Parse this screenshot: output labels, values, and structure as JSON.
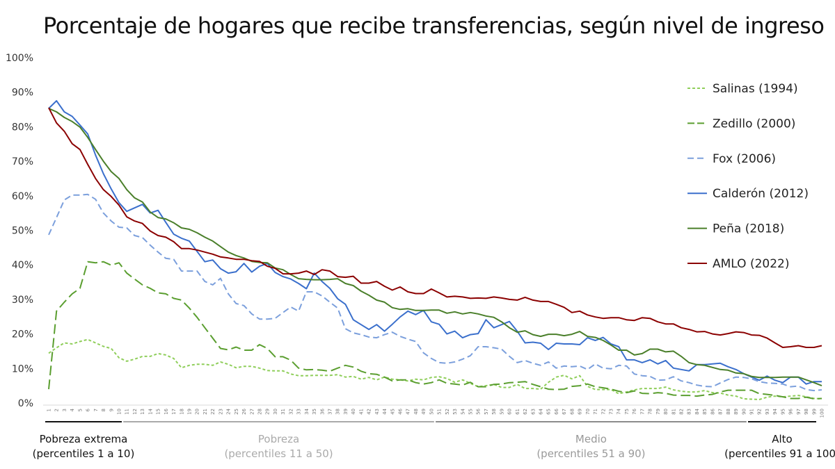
{
  "chart_data": {
    "type": "line",
    "title": "Porcentaje de hogares que recibe transferencias, según nivel de ingreso",
    "xlabel": "",
    "ylabel": "",
    "ylim": [
      0,
      100
    ],
    "yticks": [
      "0%",
      "10%",
      "20%",
      "30%",
      "40%",
      "50%",
      "60%",
      "70%",
      "80%",
      "90%",
      "100%"
    ],
    "x_start": 1,
    "x_end": 100,
    "grid": false,
    "legend_position": "right",
    "groups": [
      {
        "name": "Pobreza extrema",
        "range": "(percentiles 1 a 10)",
        "from": 1,
        "to": 10,
        "color": "#111111"
      },
      {
        "name": "Pobreza",
        "range": "(percentiles 11 a 50)",
        "from": 11,
        "to": 50,
        "color": "#aaaaaa"
      },
      {
        "name": "Medio",
        "range": "(percentiles 51 a 90)",
        "from": 51,
        "to": 90,
        "color": "#8c8c8c"
      },
      {
        "name": "Alto",
        "range": "(percentiles 91 a 100)",
        "from": 91,
        "to": 100,
        "color": "#111111"
      }
    ],
    "series": [
      {
        "name": "Salinas (1994)",
        "color": "#8fce5a",
        "dash": "short",
        "values": [
          14.4,
          16,
          17.4,
          17.1,
          17.8,
          18.4,
          17.4,
          16.4,
          15.8,
          13.1,
          12.1,
          12.7,
          13.5,
          13.5,
          14.3,
          13.9,
          12.9,
          10.2,
          10.9,
          11.2,
          11.2,
          10.9,
          11.9,
          11.2,
          10.2,
          10.6,
          10.6,
          10.1,
          9.4,
          9.3,
          9.3,
          8.4,
          7.9,
          7.9,
          8,
          8,
          8,
          8.2,
          7.5,
          7.7,
          6.9,
          7.4,
          6.7,
          7.5,
          6.9,
          6.7,
          6.4,
          6.9,
          6.7,
          7.4,
          7.6,
          7.1,
          6,
          6.7,
          5.7,
          4.7,
          5,
          5.4,
          4.5,
          4.5,
          5.4,
          4.2,
          4.2,
          4,
          6,
          7.5,
          8,
          7,
          7.9,
          4.8,
          3.9,
          3.9,
          3.9,
          2.7,
          3.2,
          3.8,
          4.2,
          4.2,
          4.2,
          4.6,
          3.8,
          3.4,
          3.2,
          3.2,
          3.6,
          3,
          2.9,
          2.3,
          2,
          1.2,
          1.1,
          1,
          1.7,
          2,
          1.8,
          2,
          2.2,
          1.8,
          1.3,
          1.2
        ]
      },
      {
        "name": "Zedillo (2000)",
        "color": "#5a9e2f",
        "dash": "long",
        "values": [
          4,
          26.6,
          29.2,
          31.6,
          33.2,
          40.9,
          40.6,
          40.9,
          39.9,
          40.6,
          37.6,
          35.9,
          34.2,
          33.2,
          31.9,
          31.6,
          30.3,
          29.8,
          27.5,
          24.8,
          21.8,
          18.8,
          15.8,
          15.4,
          16.2,
          15.3,
          15.3,
          16.9,
          15.8,
          13.4,
          13.4,
          12.4,
          10.1,
          9.6,
          9.7,
          9.5,
          9.2,
          10.1,
          10.9,
          10.4,
          9.2,
          8.5,
          8.3,
          7.5,
          6.4,
          6.7,
          6.7,
          5.9,
          5.5,
          5.9,
          6.7,
          5.7,
          5.5,
          5.2,
          6,
          4.7,
          4.7,
          5.4,
          5.5,
          5.9,
          6,
          6.2,
          5.4,
          4.7,
          4,
          3.9,
          4,
          4.8,
          5,
          5.5,
          4.7,
          4.4,
          4,
          3.4,
          3,
          3.5,
          2.8,
          2.7,
          3,
          2.8,
          2.3,
          2.2,
          2.2,
          2,
          2.3,
          2.5,
          3.2,
          3.7,
          3.7,
          3.7,
          3.7,
          2.7,
          2.5,
          2.2,
          1.8,
          1.3,
          1.3,
          1.7,
          1.2,
          1.3
        ]
      },
      {
        "name": "Fox (2006)",
        "color": "#7b9fdc",
        "dash": "medium",
        "values": [
          48.7,
          53.7,
          58.8,
          60.2,
          60.2,
          60.4,
          59,
          55,
          52.7,
          50.9,
          50.7,
          48.5,
          47.9,
          45.7,
          43.7,
          41.9,
          41.6,
          38.2,
          38.2,
          38.2,
          35.2,
          34.2,
          36.1,
          31.6,
          28.8,
          28.2,
          25.8,
          24.3,
          24.3,
          24.5,
          26.2,
          27.8,
          26.6,
          32.2,
          32.2,
          31,
          29.2,
          27.5,
          21.5,
          20.3,
          19.8,
          19.1,
          18.9,
          19.8,
          20.5,
          19.3,
          18.5,
          17.8,
          14.5,
          12.9,
          11.7,
          11.5,
          11.9,
          12.7,
          13.7,
          16.3,
          16.3,
          16,
          15.6,
          13.5,
          11.7,
          12.3,
          11.5,
          10.9,
          11.9,
          10.1,
          10.7,
          10.5,
          10.7,
          9.7,
          11.3,
          10.1,
          9.9,
          10.9,
          10.7,
          8.4,
          7.9,
          7.7,
          6.6,
          6.7,
          7.6,
          6.4,
          5.9,
          5.2,
          4.8,
          4.7,
          5.8,
          6.8,
          7.5,
          7.4,
          7,
          6.2,
          5.8,
          5.7,
          5.5,
          4.7,
          4.9,
          3.9,
          3.6,
          3.8
        ]
      },
      {
        "name": "Calderón (2012)",
        "color": "#3a6fcc",
        "dash": "solid",
        "values": [
          85.3,
          87.5,
          84.3,
          83,
          80.5,
          77.9,
          71.8,
          66.4,
          62,
          58,
          55.5,
          56.5,
          57.5,
          55,
          55.8,
          52.3,
          48.9,
          47.7,
          46.9,
          43.9,
          40.9,
          41.4,
          38.9,
          37.6,
          38,
          40.4,
          37.9,
          39.6,
          40.4,
          37.8,
          36.6,
          35.9,
          34.6,
          33.1,
          37.6,
          35.2,
          33.2,
          30.2,
          28.6,
          24.1,
          22.7,
          21.3,
          22.7,
          20.8,
          22.8,
          24.9,
          26.6,
          25.6,
          26.8,
          23.5,
          22.8,
          20,
          20.8,
          18.9,
          19.8,
          20.1,
          24.1,
          21.8,
          22.7,
          23.6,
          20.8,
          17.4,
          17.6,
          17.3,
          15.5,
          17.3,
          17.1,
          17.1,
          16.9,
          18.9,
          18.1,
          19,
          17.1,
          16.3,
          12.5,
          12.5,
          11.7,
          12.5,
          11.3,
          12.3,
          10.1,
          9.7,
          9.3,
          11.1,
          11.1,
          11.3,
          11.5,
          10.5,
          9.7,
          8.5,
          7.5,
          6.6,
          7.8,
          6.6,
          5.9,
          7.5,
          7.5,
          5.5,
          6.2,
          6.2
        ]
      },
      {
        "name": "Peña (2018)",
        "color": "#4a7f2a",
        "dash": "solid",
        "values": [
          85.3,
          84.3,
          82.7,
          81.5,
          79.9,
          76.9,
          73.4,
          70,
          67,
          65,
          61.8,
          59.4,
          58.2,
          55.3,
          53.7,
          53.3,
          52.2,
          50.7,
          50.3,
          49.3,
          48,
          46.9,
          45.3,
          43.7,
          42.7,
          42,
          41,
          40.7,
          40.6,
          39.1,
          38.6,
          37.2,
          36,
          35.8,
          35.7,
          35.7,
          35.8,
          36,
          34.6,
          34,
          32.4,
          31.2,
          29.8,
          29.2,
          27.6,
          27.1,
          27.3,
          26.8,
          26.8,
          26.9,
          26.9,
          26,
          26.4,
          25.8,
          26.2,
          25.8,
          25.2,
          24.8,
          23.5,
          21.8,
          20.5,
          20.9,
          19.8,
          19.3,
          19.9,
          19.9,
          19.5,
          19.9,
          20.7,
          19.3,
          19,
          18.1,
          16.8,
          15.3,
          15.3,
          13.9,
          14.3,
          15.6,
          15.6,
          14.8,
          15,
          13.5,
          11.7,
          11.1,
          10.9,
          10.3,
          9.7,
          9.5,
          8.7,
          8.5,
          7.7,
          7.4,
          7.4,
          7.4,
          7.5,
          7.5,
          7.5,
          6.7,
          5.9,
          5
        ]
      },
      {
        "name": "AMLO (2022)",
        "color": "#8b0000",
        "dash": "solid",
        "values": [
          85.5,
          81.1,
          78.7,
          75.1,
          73.4,
          69.1,
          65,
          61.8,
          59.8,
          57.3,
          53.9,
          52.7,
          52,
          49.8,
          48.5,
          48,
          46.7,
          44.7,
          44.7,
          44.3,
          43.7,
          43.1,
          42.3,
          42,
          41.6,
          41.6,
          41.2,
          41,
          39.6,
          39,
          37.4,
          37.4,
          37.6,
          38.2,
          37.2,
          38.6,
          38.2,
          36.6,
          36.4,
          36.7,
          34.7,
          34.7,
          35.2,
          33.8,
          32.7,
          33.6,
          32.2,
          31.7,
          31.7,
          33,
          31.9,
          30.7,
          30.9,
          30.7,
          30.3,
          30.4,
          30.3,
          30.7,
          30.4,
          30,
          29.8,
          30.6,
          29.8,
          29.4,
          29.4,
          28.6,
          27.7,
          26.2,
          26.6,
          25.5,
          24.9,
          24.5,
          24.7,
          24.7,
          24.1,
          23.9,
          24.7,
          24.5,
          23.5,
          22.9,
          22.9,
          21.8,
          21.3,
          20.6,
          20.7,
          20,
          19.7,
          20.1,
          20.6,
          20.4,
          19.7,
          19.6,
          18.8,
          17.4,
          16.1,
          16.3,
          16.6,
          16.1,
          16.1,
          16.6
        ]
      }
    ]
  }
}
